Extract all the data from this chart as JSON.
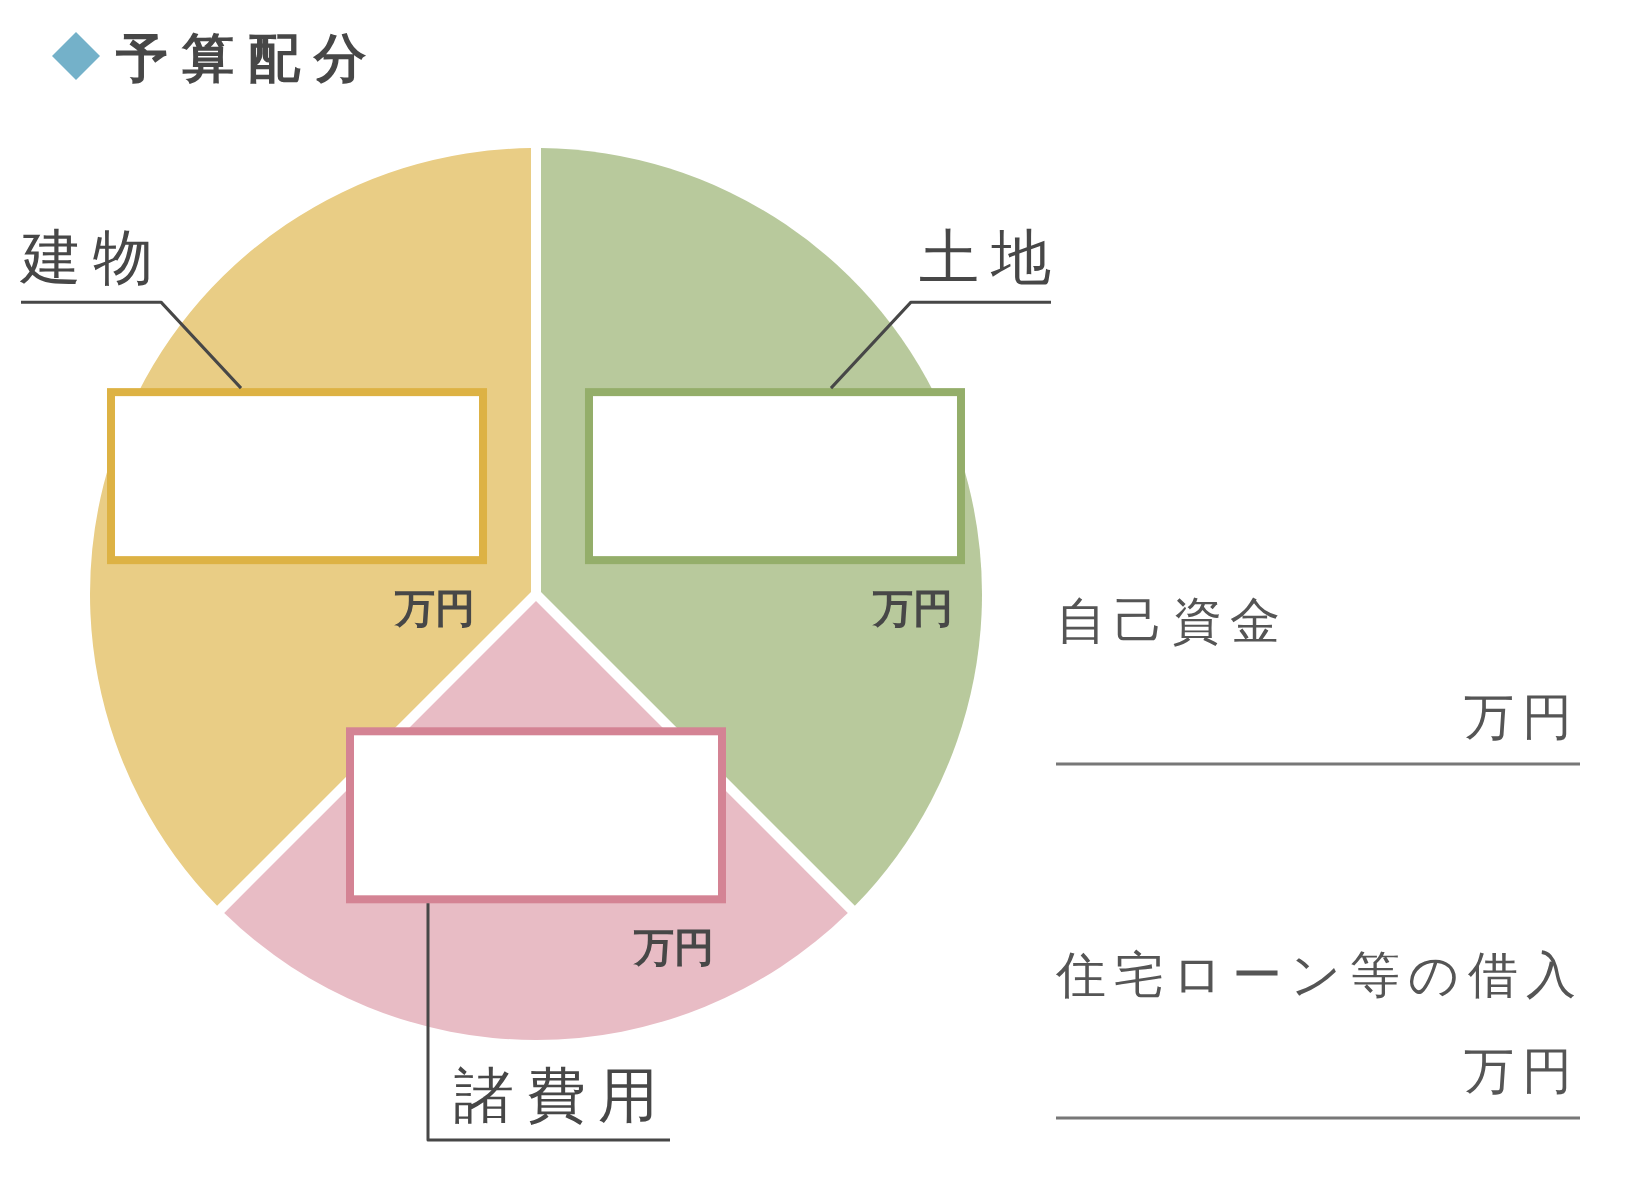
{
  "chart_data": {
    "type": "pie",
    "title": "予算配分",
    "categories": [
      "土地",
      "諸費用",
      "建物"
    ],
    "values": [
      37.5,
      25,
      37.5
    ],
    "colors": [
      "#b8c99c",
      "#e8bcc5",
      "#e9cd85"
    ],
    "value_labels": [
      "万円",
      "万円",
      "万円"
    ],
    "annotations": [
      "自己資金",
      "万円",
      "住宅ローン等の借入",
      "万円"
    ]
  }
}
